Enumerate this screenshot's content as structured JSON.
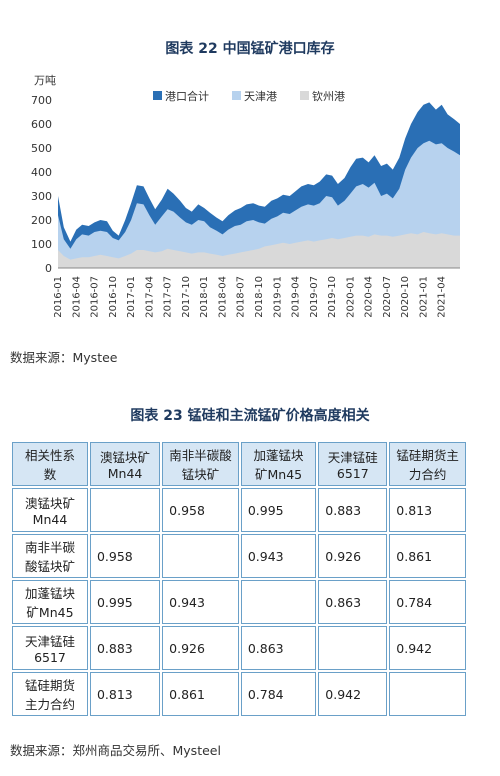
{
  "chart_title": "图表 22    中国锰矿港口库存",
  "chart_source": "数据来源：Mystee",
  "chart_data": {
    "type": "area",
    "ylabel": "万吨",
    "ylim": [
      0,
      700
    ],
    "yticks": [
      0,
      100,
      200,
      300,
      400,
      500,
      600,
      700
    ],
    "x_tick_labels": [
      "2016-01",
      "2016-04",
      "2016-07",
      "2016-10",
      "2017-01",
      "2017-04",
      "2017-07",
      "2017-10",
      "2018-01",
      "2018-04",
      "2018-07",
      "2018-10",
      "2019-01",
      "2019-04",
      "2019-07",
      "2019-10",
      "2020-01",
      "2020-04",
      "2020-07",
      "2020-10",
      "2021-01",
      "2021-04"
    ],
    "legend": [
      "港口合计",
      "天津港",
      "钦州港"
    ],
    "legend_position": "top",
    "colors": {
      "total": "#2a6fb5",
      "tianjin": "#b7d2ee",
      "qinzhou": "#d9d9d9"
    },
    "x": [
      2016.0,
      2016.08,
      2016.17,
      2016.25,
      2016.33,
      2016.42,
      2016.5,
      2016.58,
      2016.67,
      2016.75,
      2016.83,
      2016.92,
      2017.0,
      2017.08,
      2017.17,
      2017.25,
      2017.33,
      2017.42,
      2017.5,
      2017.58,
      2017.67,
      2017.75,
      2017.83,
      2017.92,
      2018.0,
      2018.08,
      2018.17,
      2018.25,
      2018.33,
      2018.42,
      2018.5,
      2018.58,
      2018.67,
      2018.75,
      2018.83,
      2018.92,
      2019.0,
      2019.08,
      2019.17,
      2019.25,
      2019.33,
      2019.42,
      2019.5,
      2019.58,
      2019.67,
      2019.75,
      2019.83,
      2019.92,
      2020.0,
      2020.08,
      2020.17,
      2020.25,
      2020.33,
      2020.42,
      2020.5,
      2020.58,
      2020.67,
      2020.75,
      2020.83,
      2020.92,
      2021.0,
      2021.08,
      2021.17,
      2021.25,
      2021.33,
      2021.42,
      2021.5
    ],
    "series": [
      {
        "name": "港口合计",
        "values": [
          300,
          170,
          110,
          160,
          180,
          175,
          190,
          200,
          195,
          155,
          135,
          200,
          270,
          345,
          340,
          290,
          245,
          285,
          330,
          310,
          280,
          250,
          235,
          265,
          250,
          230,
          210,
          195,
          220,
          240,
          250,
          265,
          270,
          260,
          255,
          280,
          290,
          305,
          300,
          320,
          340,
          350,
          345,
          360,
          390,
          385,
          350,
          375,
          420,
          455,
          460,
          440,
          470,
          425,
          435,
          410,
          460,
          540,
          600,
          650,
          680,
          690,
          660,
          680,
          640,
          620,
          600
        ]
      },
      {
        "name": "天津港",
        "values": [
          220,
          120,
          80,
          120,
          140,
          135,
          150,
          155,
          150,
          125,
          115,
          150,
          200,
          270,
          265,
          220,
          180,
          215,
          245,
          235,
          210,
          190,
          180,
          200,
          195,
          170,
          155,
          140,
          160,
          175,
          180,
          195,
          200,
          190,
          185,
          205,
          215,
          230,
          225,
          240,
          255,
          265,
          260,
          270,
          300,
          295,
          260,
          280,
          310,
          340,
          350,
          335,
          355,
          300,
          310,
          290,
          330,
          410,
          460,
          500,
          520,
          530,
          515,
          520,
          500,
          485,
          470
        ]
      },
      {
        "name": "钦州港",
        "values": [
          75,
          50,
          35,
          40,
          45,
          45,
          50,
          55,
          50,
          45,
          40,
          50,
          60,
          75,
          75,
          70,
          65,
          70,
          80,
          75,
          70,
          65,
          60,
          65,
          65,
          60,
          55,
          50,
          55,
          60,
          65,
          70,
          75,
          80,
          90,
          95,
          100,
          105,
          100,
          105,
          110,
          115,
          110,
          115,
          120,
          125,
          120,
          125,
          130,
          135,
          135,
          130,
          140,
          135,
          135,
          130,
          135,
          140,
          145,
          140,
          150,
          145,
          140,
          145,
          140,
          135,
          135
        ]
      }
    ]
  },
  "table_title": "图表 23    锰硅和主流锰矿价格高度相关",
  "table_source": "数据来源：郑州商品交易所、Mysteel",
  "table": {
    "corner": "相关性系数",
    "columns": [
      "澳锰块矿Mn44",
      "南非半碳酸锰块矿",
      "加蓬锰块矿Mn45",
      "天津锰硅6517",
      "锰硅期货主力合约"
    ],
    "rows": [
      {
        "label": "澳锰块矿Mn44",
        "cells": [
          "",
          "0.958",
          "0.995",
          "0.883",
          "0.813"
        ]
      },
      {
        "label": "南非半碳酸锰块矿",
        "cells": [
          "0.958",
          "",
          "0.943",
          "0.926",
          "0.861"
        ]
      },
      {
        "label": "加蓬锰块矿Mn45",
        "cells": [
          "0.995",
          "0.943",
          "",
          "0.863",
          "0.784"
        ]
      },
      {
        "label": "天津锰硅6517",
        "cells": [
          "0.883",
          "0.926",
          "0.863",
          "",
          "0.942"
        ]
      },
      {
        "label": "锰硅期货主力合约",
        "cells": [
          "0.813",
          "0.861",
          "0.784",
          "0.942",
          ""
        ]
      }
    ]
  }
}
